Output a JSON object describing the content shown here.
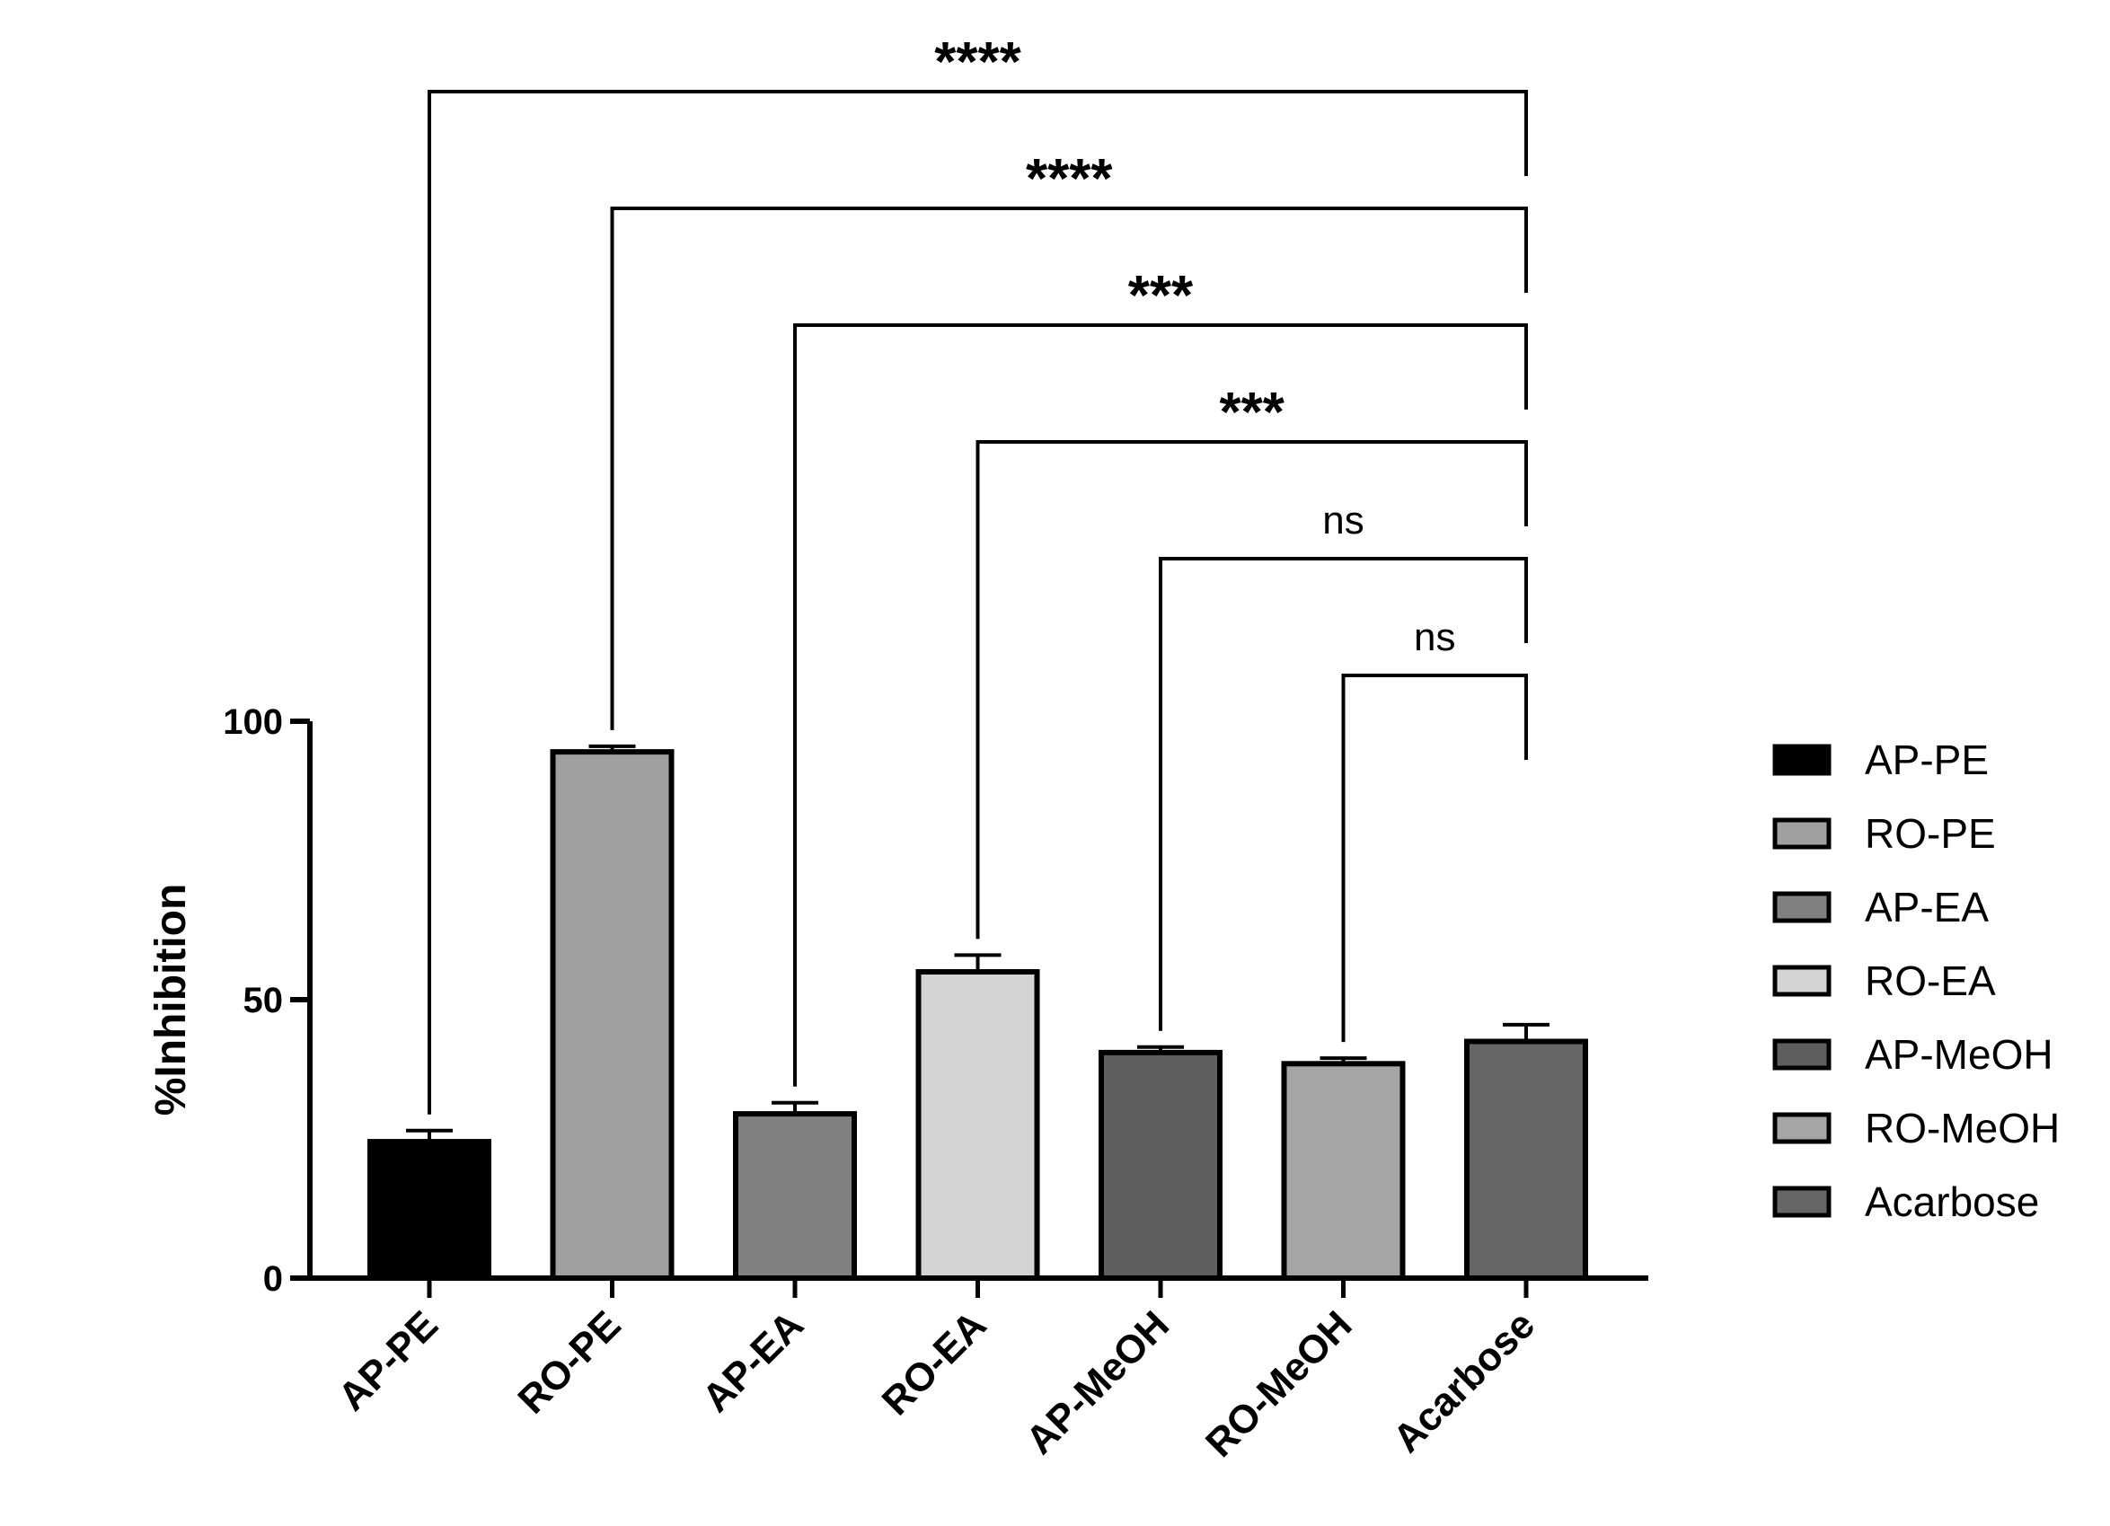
{
  "chart_data": {
    "type": "bar",
    "categories": [
      "AP-PE",
      "RO-PE",
      "AP-EA",
      "RO-EA",
      "AP-MeOH",
      "RO-MeOH",
      "Acarbose"
    ],
    "values": [
      24.5,
      94.5,
      29.5,
      55,
      40.5,
      38.5,
      42.5
    ],
    "errors": [
      2,
      1,
      2,
      3,
      1,
      1,
      3
    ],
    "colors": [
      "#000000",
      "#a0a0a2",
      "#808080",
      "#d3d3d3",
      "#5e5e5e",
      "#a5a5a7",
      "#666666"
    ],
    "ylabel": "%Inhibition",
    "ylim": [
      0,
      100
    ],
    "yticks": [
      "0",
      "50",
      "100"
    ],
    "legend": {
      "position": "right",
      "entries": [
        "AP-PE",
        "RO-PE",
        "AP-EA",
        "RO-EA",
        "AP-MeOH",
        "RO-MeOH",
        "Acarbose"
      ]
    },
    "comparisons": [
      {
        "from": "AP-PE",
        "to": "Acarbose",
        "label": "****"
      },
      {
        "from": "RO-PE",
        "to": "Acarbose",
        "label": "****"
      },
      {
        "from": "AP-EA",
        "to": "Acarbose",
        "label": "***"
      },
      {
        "from": "RO-EA",
        "to": "Acarbose",
        "label": "***"
      },
      {
        "from": "AP-MeOH",
        "to": "Acarbose",
        "label": "ns"
      },
      {
        "from": "RO-MeOH",
        "to": "Acarbose",
        "label": "ns"
      }
    ]
  }
}
